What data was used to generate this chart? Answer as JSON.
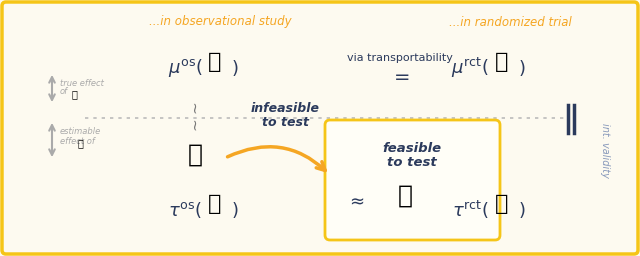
{
  "bg_color": "#FDFAF0",
  "border_color": "#F5C518",
  "title_obs": "...in observational study",
  "title_rct": "...in randomized trial",
  "title_color": "#F5A623",
  "via_transport": "via transportability",
  "infeasible_line1": "infeasible",
  "infeasible_line2": "to test",
  "feasible_line1": "feasible",
  "feasible_line2": "to test",
  "int_validity": "int. validity",
  "true_effect_lines": [
    "true effect",
    "of"
  ],
  "estimable_lines": [
    "estimable",
    "effect of"
  ],
  "arrow_color": "#F5A623",
  "dotted_line_color": "#BBBBBB",
  "gray_text_color": "#AAAAAA",
  "bold_text_color": "#2B3A5C",
  "feasible_box_color": "#F5C518",
  "math_color": "#2B3A5C",
  "equals_color": "#2B3A5C",
  "wavy_color": "#777777",
  "double_bar_color": "#2B3A5C",
  "int_validity_color": "#8899BB"
}
